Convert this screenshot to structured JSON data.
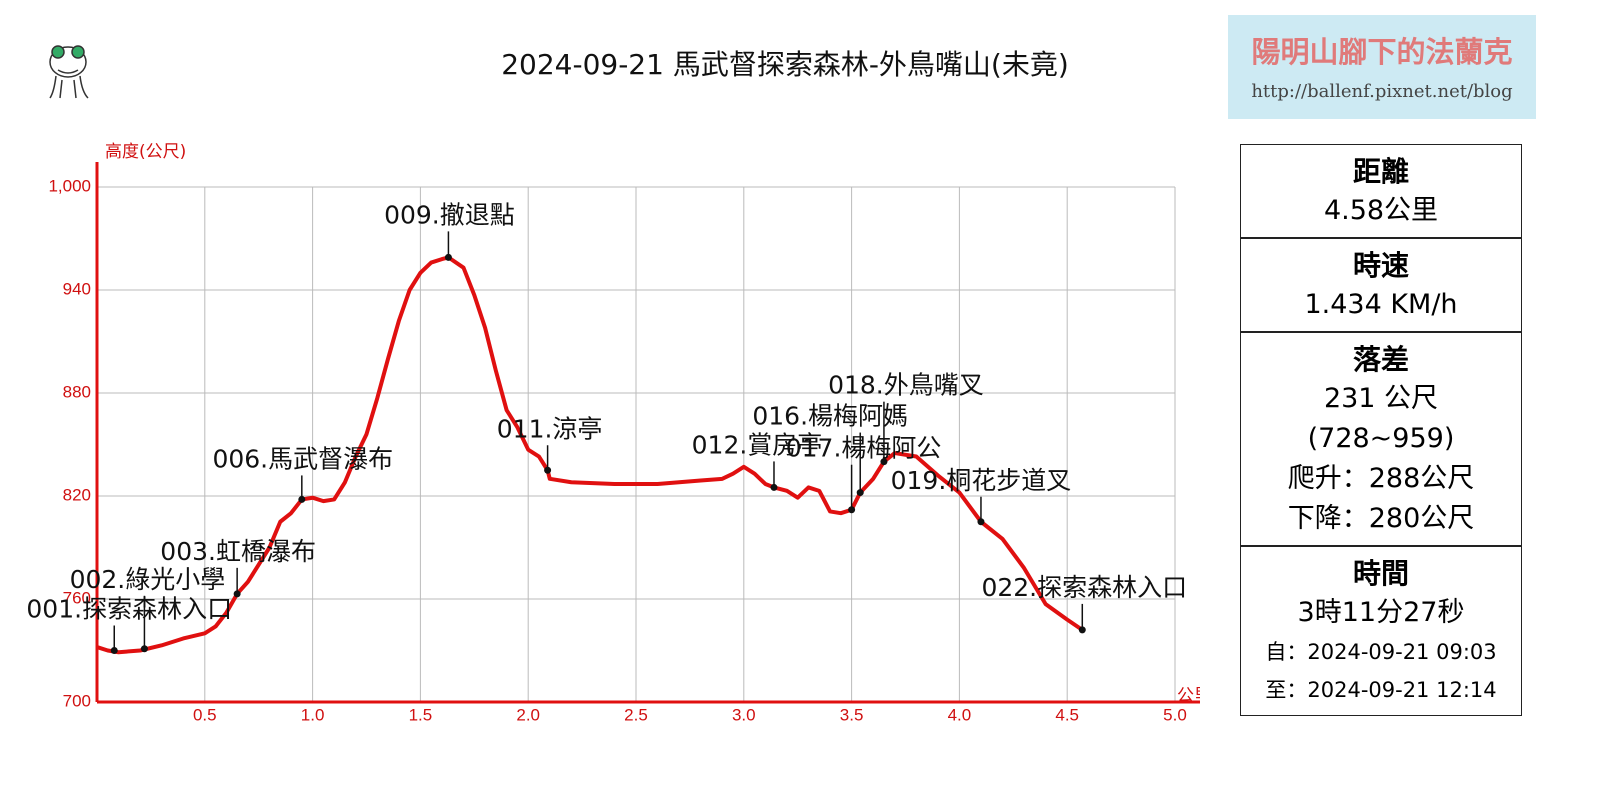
{
  "chart_data": {
    "type": "line",
    "title": "2024-09-21 馬武督探索森林-外鳥嘴山(未竟)",
    "y_label": "高度(公尺)",
    "x_label": "公里",
    "color": "#e01010",
    "xlim": [
      0,
      5
    ],
    "ylim": [
      700,
      1000
    ],
    "xticks": [
      0.5,
      {
        "value": 1,
        "label": "1.0"
      },
      1.5,
      {
        "value": 2,
        "label": "2.0"
      },
      2.5,
      {
        "value": 3,
        "label": "3.0"
      },
      3.5,
      {
        "value": 4,
        "label": "4.0"
      },
      4.5,
      {
        "value": 5,
        "label": "5.0"
      }
    ],
    "yticks": [
      700,
      760,
      820,
      880,
      940,
      {
        "value": 1000,
        "label": "1,000"
      }
    ],
    "grid": true,
    "x": [
      0,
      0.05,
      0.1,
      0.2,
      0.3,
      0.4,
      0.5,
      0.55,
      0.6,
      0.65,
      0.7,
      0.8,
      0.85,
      0.9,
      0.95,
      1.0,
      1.05,
      1.1,
      1.15,
      1.2,
      1.25,
      1.3,
      1.35,
      1.4,
      1.45,
      1.5,
      1.55,
      1.6,
      1.63,
      1.7,
      1.75,
      1.8,
      1.85,
      1.9,
      1.95,
      2.0,
      2.05,
      2.09,
      2.1,
      2.2,
      2.4,
      2.6,
      2.7,
      2.8,
      2.9,
      2.95,
      3.0,
      3.05,
      3.1,
      3.14,
      3.2,
      3.25,
      3.3,
      3.35,
      3.4,
      3.45,
      3.5,
      3.54,
      3.6,
      3.65,
      3.7,
      3.8,
      3.9,
      4.0,
      4.1,
      4.2,
      4.3,
      4.4,
      4.5,
      4.57
    ],
    "values": [
      732,
      730,
      729,
      730,
      733,
      737,
      740,
      744,
      752,
      763,
      770,
      790,
      805,
      810,
      818,
      819,
      817,
      818,
      828,
      843,
      856,
      877,
      900,
      922,
      940,
      950,
      956,
      958,
      959,
      953,
      937,
      918,
      893,
      870,
      860,
      847,
      843,
      835,
      830,
      828,
      827,
      827,
      828,
      829,
      830,
      833,
      837,
      833,
      827,
      825,
      823,
      819,
      825,
      823,
      811,
      810,
      812,
      822,
      830,
      840,
      845,
      843,
      832,
      822,
      805,
      795,
      778,
      757,
      748,
      742
    ],
    "annotations": [
      {
        "text": "001.探索森林入口",
        "x": 0.08,
        "y": 730
      },
      {
        "text": "002.綠光小學",
        "x": 0.22,
        "y": 731
      },
      {
        "text": "003.虹橋瀑布",
        "x": 0.65,
        "y": 763
      },
      {
        "text": "006.馬武督瀑布",
        "x": 0.95,
        "y": 818
      },
      {
        "text": "009.撤退點",
        "x": 1.63,
        "y": 959
      },
      {
        "text": "011.涼亭",
        "x": 2.09,
        "y": 835
      },
      {
        "text": "012.賞房亭",
        "x": 3.14,
        "y": 825
      },
      {
        "text": "016.楊梅阿媽",
        "x": 3.54,
        "y": 822
      },
      {
        "text": "017.楊梅阿公",
        "x": 3.5,
        "y": 812
      },
      {
        "text": "018.外鳥嘴叉",
        "x": 3.65,
        "y": 840
      },
      {
        "text": "019.桐花步道叉",
        "x": 4.1,
        "y": 805
      },
      {
        "text": "022.探索森林入口",
        "x": 4.57,
        "y": 742
      }
    ]
  },
  "blog": {
    "title": "陽明山腳下的法蘭克",
    "url": "http://ballenf.pixnet.net/blog"
  },
  "info_panel": [
    {
      "heading": "距離",
      "lines": [
        "4.58公里"
      ]
    },
    {
      "heading": "時速",
      "lines": [
        "1.434 KM/h"
      ]
    },
    {
      "heading": "落差",
      "lines": [
        "231 公尺",
        "(728~959)",
        "爬升：288公尺",
        "下降：280公尺"
      ]
    },
    {
      "heading": "時間",
      "lines": [
        "3時11分27秒",
        "自：2024-09-21 09:03",
        "至：2024-09-21 12:14"
      ]
    }
  ]
}
